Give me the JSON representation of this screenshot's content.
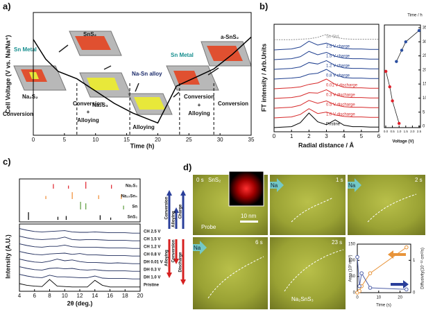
{
  "chart_data": [
    {
      "type": "line",
      "panel": "a)",
      "xlabel": "Time (h)",
      "ylabel": "Cell Voltage (V vs. Na/Na⁺)",
      "x": [
        0,
        2,
        4,
        7,
        10,
        13,
        16,
        18,
        20,
        21.5,
        23,
        26,
        29,
        32,
        35
      ],
      "values": [
        0.78,
        0.62,
        0.52,
        0.46,
        0.36,
        0.26,
        0.18,
        0.14,
        0.1,
        0.25,
        0.4,
        0.47,
        0.54,
        0.66,
        0.8
      ],
      "color": "#000000",
      "xlim": [
        0,
        35
      ],
      "xticks": [
        0,
        5,
        10,
        15,
        20,
        25,
        30,
        35
      ],
      "ylim": [
        0,
        1
      ],
      "dividers": [
        7,
        15.5,
        23.5,
        29
      ],
      "regions": [
        [
          "Conversion"
        ],
        [
          "Conversion",
          "+",
          "Alloying"
        ],
        [
          "Alloying"
        ],
        [
          "Conversion",
          "+",
          "Alloying"
        ],
        [
          "Conversion"
        ]
      ],
      "annotations": [
        "Sn Metal",
        "SnS₂",
        "Na₂S₂",
        "Na-Sn alloy",
        "Na₂S₃",
        "Sn Metal",
        "a-SnS₂"
      ]
    },
    {
      "type": "line",
      "panel": "b)",
      "xlabel": "Radial distance / Å",
      "ylabel": "FT intensity / Arb.Units",
      "x": [
        0,
        0.5,
        1,
        1.5,
        2,
        2.5,
        3,
        3.5,
        4,
        4.5,
        5,
        5.5,
        6
      ],
      "xlim": [
        0,
        6
      ],
      "xticks": [
        0,
        1,
        2,
        3,
        4,
        5,
        6
      ],
      "series": [
        {
          "name": "Sn Std.",
          "color": "#8a8a8a",
          "values": [
            0.05,
            0.05,
            0.05,
            0.1,
            0.15,
            0.3,
            0.6,
            0.3,
            0.15,
            0.1,
            0.1,
            0.1,
            0.1
          ]
        },
        {
          "name": "2.5 V charge",
          "color": "#1f3f8f",
          "values": [
            0,
            0.05,
            0.1,
            0.3,
            0.9,
            0.5,
            0.7,
            0.35,
            0.15,
            0.1,
            0.1,
            0.05,
            0.05
          ]
        },
        {
          "name": "1.5 V charge",
          "color": "#1f3f8f",
          "values": [
            0,
            0.05,
            0.1,
            0.3,
            0.85,
            0.5,
            0.75,
            0.35,
            0.15,
            0.1,
            0.1,
            0.05,
            0.05
          ]
        },
        {
          "name": "1.2 V charge",
          "color": "#1f3f8f",
          "values": [
            0,
            0.05,
            0.1,
            0.25,
            0.7,
            0.55,
            0.9,
            0.4,
            0.15,
            0.1,
            0.1,
            0.05,
            0.05
          ]
        },
        {
          "name": "0.8 V charge",
          "color": "#1f3f8f",
          "values": [
            0,
            0.05,
            0.1,
            0.2,
            0.5,
            0.6,
            1.0,
            0.45,
            0.15,
            0.1,
            0.1,
            0.05,
            0.05
          ]
        },
        {
          "name": "0.01 V discharge",
          "color": "#d62728",
          "values": [
            0,
            0.05,
            0.1,
            0.2,
            0.45,
            0.6,
            1.0,
            0.45,
            0.15,
            0.1,
            0.1,
            0.05,
            0.05
          ]
        },
        {
          "name": "0.3 V discharge",
          "color": "#d62728",
          "values": [
            0,
            0.05,
            0.1,
            0.25,
            0.6,
            0.55,
            0.9,
            0.4,
            0.15,
            0.1,
            0.1,
            0.05,
            0.05
          ]
        },
        {
          "name": "0.5 V discharge",
          "color": "#d62728",
          "values": [
            0,
            0.05,
            0.1,
            0.3,
            0.8,
            0.5,
            0.75,
            0.35,
            0.15,
            0.1,
            0.1,
            0.05,
            0.05
          ]
        },
        {
          "name": "1.0 V discharge",
          "color": "#d62728",
          "values": [
            0,
            0.05,
            0.1,
            0.35,
            0.95,
            0.45,
            0.6,
            0.3,
            0.15,
            0.1,
            0.1,
            0.05,
            0.05
          ]
        },
        {
          "name": "Pristine",
          "color": "#000000",
          "values": [
            0,
            0.05,
            0.1,
            0.5,
            1.5,
            0.6,
            0.3,
            0.8,
            0.25,
            0.1,
            0.1,
            0.05,
            0.05
          ]
        }
      ]
    },
    {
      "type": "scatter",
      "xlabel": "Voltage (V)",
      "ylabel": "Time / h",
      "xlim": [
        0,
        2.5
      ],
      "xticks": [
        {
          "value": 0,
          "label": "0.0"
        },
        0.5,
        {
          "value": 1,
          "label": "1.0"
        },
        1.5,
        {
          "value": 2,
          "label": "2.0"
        },
        2.5
      ],
      "ylim": [
        0,
        35
      ],
      "yticks": [
        0,
        5,
        10,
        15,
        20,
        25,
        30,
        35
      ],
      "series": [
        {
          "color": "#e0202a",
          "x": [
            1.0,
            0.5,
            0.3,
            0.01
          ],
          "values": [
            1,
            9,
            14,
            19.5
          ]
        },
        {
          "color": "#2a4ea0",
          "x": [
            0.8,
            1.2,
            1.5,
            2.5
          ],
          "values": [
            23,
            27,
            30,
            34
          ]
        }
      ]
    },
    {
      "type": "line",
      "panel": "c)",
      "xlabel": "2θ (deg.)",
      "ylabel": "Intensity (A.U.)",
      "x": [
        4,
        5,
        6,
        7,
        8,
        9,
        10,
        11,
        12,
        13,
        14,
        15,
        16,
        17,
        18,
        19,
        20
      ],
      "xlim": [
        4,
        20
      ],
      "xticks": [
        4,
        6,
        8,
        10,
        12,
        14,
        16,
        18,
        20
      ],
      "references": [
        {
          "name": "Na₂S₂",
          "color": "#e0202a",
          "positions": [
            8.5,
            10.5,
            12.8,
            16.2
          ],
          "heights": [
            0.6,
            0.4,
            0.9,
            0.5
          ]
        },
        {
          "name": "Na₁₅Sn₄",
          "color": "#f08a30",
          "positions": [
            7.5,
            11,
            14.5,
            17.5
          ],
          "heights": [
            0.4,
            0.9,
            0.5,
            0.6
          ]
        },
        {
          "name": "Sn",
          "color": "#5a9a3a",
          "positions": [
            12.1,
            12.8,
            17.8
          ],
          "heights": [
            1.0,
            0.8,
            0.5
          ]
        },
        {
          "name": "SnS₂",
          "color": "#000000",
          "positions": [
            5.2,
            9.1,
            10.2,
            14.7,
            16.1
          ],
          "heights": [
            1.0,
            0.4,
            0.5,
            0.6,
            0.3
          ]
        }
      ],
      "series": [
        {
          "name": "CH 2.5 V",
          "color": "#1d2a5a",
          "values": [
            0.7,
            0.5,
            0.35,
            0.3,
            0.35,
            0.4,
            0.45,
            0.3,
            0.25,
            0.25,
            0.3,
            0.25,
            0.2,
            0.2,
            0.2,
            0.15,
            0.15
          ]
        },
        {
          "name": "CH 1.5 V",
          "color": "#1d2a5a",
          "values": [
            0.7,
            0.5,
            0.35,
            0.3,
            0.35,
            0.4,
            0.6,
            0.3,
            0.25,
            0.3,
            0.3,
            0.25,
            0.2,
            0.2,
            0.2,
            0.15,
            0.15
          ]
        },
        {
          "name": "CH 1.2 V",
          "color": "#1d2a5a",
          "values": [
            0.7,
            0.5,
            0.35,
            0.3,
            0.4,
            0.4,
            0.55,
            0.35,
            0.3,
            0.3,
            0.3,
            0.25,
            0.2,
            0.2,
            0.2,
            0.15,
            0.15
          ]
        },
        {
          "name": "CH 0.8 V",
          "color": "#1d2a5a",
          "values": [
            0.7,
            0.5,
            0.35,
            0.3,
            0.4,
            0.45,
            0.5,
            0.35,
            0.45,
            0.3,
            0.3,
            0.25,
            0.2,
            0.2,
            0.2,
            0.15,
            0.15
          ]
        },
        {
          "name": "DH 0.01 V",
          "color": "#1d2a5a",
          "values": [
            0.7,
            0.5,
            0.35,
            0.3,
            0.45,
            0.7,
            0.5,
            0.6,
            0.4,
            0.3,
            0.3,
            0.25,
            0.2,
            0.25,
            0.2,
            0.15,
            0.15
          ]
        },
        {
          "name": "DH 0.3 V",
          "color": "#1d2a5a",
          "values": [
            0.7,
            0.5,
            0.35,
            0.3,
            0.5,
            0.55,
            0.45,
            0.5,
            0.35,
            0.3,
            0.35,
            0.25,
            0.2,
            0.2,
            0.2,
            0.15,
            0.15
          ]
        },
        {
          "name": "DH 1.0 V",
          "color": "#1d2a5a",
          "values": [
            0.7,
            0.5,
            0.35,
            0.3,
            0.6,
            0.4,
            0.4,
            0.35,
            0.3,
            0.3,
            0.5,
            0.25,
            0.2,
            0.2,
            0.2,
            0.15,
            0.15
          ]
        },
        {
          "name": "Pristine",
          "color": "#000000",
          "values": [
            0.5,
            0.3,
            0.2,
            0.15,
            1.0,
            0.2,
            0.15,
            0.1,
            0.1,
            0.1,
            0.9,
            0.3,
            0.1,
            0.1,
            0.1,
            0.1,
            0.1
          ]
        }
      ],
      "annotations": [
        "Conversion",
        "Alloying",
        "Charge",
        "Alloying",
        "Conversion",
        "Discharge"
      ]
    },
    {
      "type": "line",
      "xlabel": "Time (s)",
      "ylabel": "Area (10² nm²)",
      "y2label": "Diffusivity(10⁻¹² cm²/s)",
      "xlim": [
        0,
        25
      ],
      "xticks": [
        0,
        10,
        20
      ],
      "ylim": [
        0,
        150
      ],
      "yticks": [
        0,
        50,
        100,
        150
      ],
      "y2lim": [
        0,
        1.5
      ],
      "y2ticks": [
        0,
        1
      ],
      "series": [
        {
          "color": "#e8943a",
          "x": [
            0,
            1,
            2,
            6,
            23
          ],
          "values": [
            0,
            5,
            20,
            60,
            140
          ]
        },
        {
          "color": "#5060a8",
          "axis": "y2",
          "x": [
            0,
            1,
            2,
            6,
            23
          ],
          "values": [
            1.1,
            0.2,
            0.6,
            0.15,
            0.1
          ]
        }
      ]
    }
  ],
  "images": {
    "panel": "d)",
    "labels": [
      "0 s",
      "SnS₂",
      "Probe",
      "10 nm",
      "1 s",
      "Na",
      "2 s",
      "Na",
      "6 s",
      "Na",
      "23 s",
      "Na₂SnS₃"
    ]
  }
}
